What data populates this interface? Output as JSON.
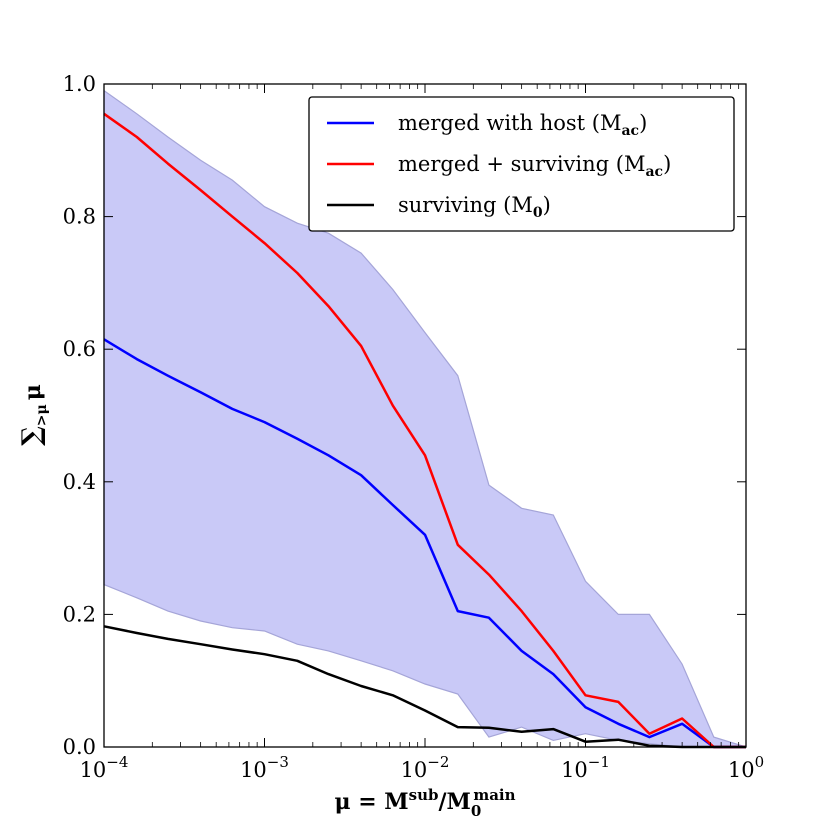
{
  "chart_data": {
    "type": "line",
    "xscale": "log",
    "xlim": [
      0.0001,
      1
    ],
    "ylim": [
      0,
      1.0
    ],
    "xlabel": {
      "main": "μ = M",
      "sup": "sub",
      "slash": "/M",
      "sub0": "0",
      "sup2": "main"
    },
    "ylabel": {
      "sigma": "∑",
      "sub": ">μ",
      "mu": "μ"
    },
    "x_ticks": [
      {
        "value": 0.0001,
        "base": "10",
        "exp": "−4"
      },
      {
        "value": 0.001,
        "base": "10",
        "exp": "−3"
      },
      {
        "value": 0.01,
        "base": "10",
        "exp": "−2"
      },
      {
        "value": 0.1,
        "base": "10",
        "exp": "−1"
      },
      {
        "value": 1,
        "base": "10",
        "exp": "0"
      }
    ],
    "y_ticks": [
      "0.0",
      "0.2",
      "0.4",
      "0.6",
      "0.8",
      "1.0"
    ],
    "band": {
      "color": "#c9c9f7",
      "edge": "#a5a5d8",
      "x": [
        0.0001,
        0.00016,
        0.00025,
        0.0004,
        0.00063,
        0.001,
        0.0016,
        0.0025,
        0.004,
        0.0063,
        0.01,
        0.016,
        0.025,
        0.04,
        0.063,
        0.1,
        0.16,
        0.25,
        0.4,
        0.63,
        1.0
      ],
      "upper": [
        0.99,
        0.955,
        0.92,
        0.885,
        0.855,
        0.815,
        0.79,
        0.775,
        0.745,
        0.69,
        0.625,
        0.56,
        0.395,
        0.36,
        0.35,
        0.25,
        0.2,
        0.2,
        0.125,
        0.015,
        0.0
      ],
      "lower": [
        0.245,
        0.225,
        0.205,
        0.19,
        0.18,
        0.175,
        0.155,
        0.145,
        0.13,
        0.115,
        0.095,
        0.08,
        0.015,
        0.03,
        0.01,
        0.02,
        0.01,
        0.005,
        0.0,
        0.0,
        0.0
      ]
    },
    "series": [
      {
        "name": "merged with host (M",
        "name_sub": "ac",
        "name_end": ")",
        "color": "#0000ff",
        "x": [
          0.0001,
          0.00016,
          0.00025,
          0.0004,
          0.00063,
          0.001,
          0.0016,
          0.0025,
          0.004,
          0.0063,
          0.01,
          0.016,
          0.025,
          0.04,
          0.063,
          0.1,
          0.16,
          0.25,
          0.4,
          0.63,
          1.0
        ],
        "y": [
          0.615,
          0.585,
          0.56,
          0.535,
          0.51,
          0.49,
          0.465,
          0.44,
          0.41,
          0.365,
          0.32,
          0.205,
          0.195,
          0.145,
          0.11,
          0.06,
          0.035,
          0.015,
          0.035,
          0.0,
          0.0
        ]
      },
      {
        "name": "merged + surviving (M",
        "name_sub": "ac",
        "name_end": ")",
        "color": "#ff0000",
        "x": [
          0.0001,
          0.00016,
          0.00025,
          0.0004,
          0.00063,
          0.001,
          0.0016,
          0.0025,
          0.004,
          0.0063,
          0.01,
          0.016,
          0.025,
          0.04,
          0.063,
          0.1,
          0.16,
          0.25,
          0.4,
          0.63,
          1.0
        ],
        "y": [
          0.955,
          0.92,
          0.88,
          0.84,
          0.8,
          0.76,
          0.715,
          0.665,
          0.605,
          0.515,
          0.44,
          0.305,
          0.26,
          0.205,
          0.145,
          0.078,
          0.068,
          0.02,
          0.043,
          0.0,
          0.0
        ]
      },
      {
        "name": "surviving (M",
        "name_sub": "0",
        "name_end": ")",
        "color": "#000000",
        "x": [
          0.0001,
          0.00016,
          0.00025,
          0.0004,
          0.00063,
          0.001,
          0.0016,
          0.0025,
          0.004,
          0.0063,
          0.01,
          0.016,
          0.025,
          0.04,
          0.063,
          0.1,
          0.16,
          0.25,
          0.4,
          0.63,
          1.0
        ],
        "y": [
          0.182,
          0.172,
          0.163,
          0.155,
          0.147,
          0.14,
          0.13,
          0.11,
          0.092,
          0.078,
          0.055,
          0.03,
          0.029,
          0.023,
          0.027,
          0.008,
          0.011,
          0.002,
          0.0,
          0.0,
          0.0
        ]
      }
    ],
    "legend": {
      "placement": "top-right"
    },
    "grid": false
  }
}
